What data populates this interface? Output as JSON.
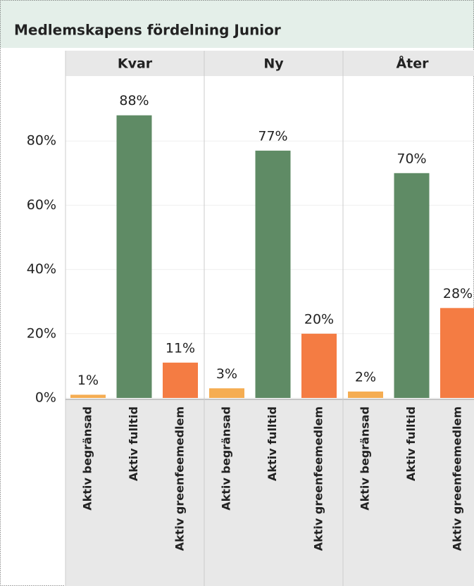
{
  "chart_data": {
    "type": "bar",
    "title": "Medlemskapens fördelning Junior",
    "categories": [
      "Aktiv begränsad",
      "Aktiv fulltid",
      "Aktiv greenfeemedlem"
    ],
    "colors": [
      "#f5ad52",
      "#5f8b65",
      "#f47c43"
    ],
    "panels": [
      {
        "name": "Kvar",
        "values": [
          1,
          88,
          11
        ],
        "value_labels": [
          "1%",
          "88%",
          "11%"
        ]
      },
      {
        "name": "Ny",
        "values": [
          3,
          77,
          20
        ],
        "value_labels": [
          "3%",
          "77%",
          "20%"
        ]
      },
      {
        "name": "Åter",
        "values": [
          2,
          70,
          28
        ],
        "value_labels": [
          "2%",
          "70%",
          "28%"
        ]
      }
    ],
    "ylim": [
      0,
      100
    ],
    "yticks": [
      {
        "value": 0,
        "label": "0%"
      },
      {
        "value": 20,
        "label": "20%"
      },
      {
        "value": 40,
        "label": "40%"
      },
      {
        "value": 60,
        "label": "60%"
      },
      {
        "value": 80,
        "label": "80%"
      }
    ],
    "grid": true
  }
}
